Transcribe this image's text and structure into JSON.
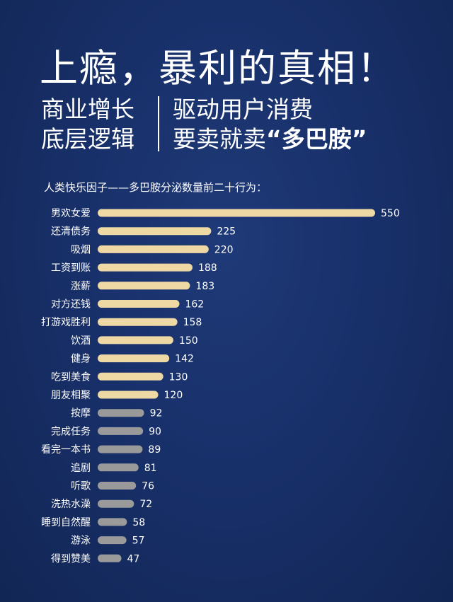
{
  "headline": "上瘾，暴利的真相！",
  "subtitle": {
    "left_line1": "商业增长",
    "left_line2": "底层逻辑",
    "right_line1": "驱动用户消费",
    "right_line2_prefix": "要卖就卖",
    "right_line2_quote": "“多巴胺”"
  },
  "colors": {
    "background": "#18306a",
    "bar_gold": "#eed8a4",
    "bar_grey": "#9a9a9a",
    "text": "#ffffff"
  },
  "chart_data": {
    "type": "bar",
    "orientation": "horizontal",
    "title": "人类快乐因子——多巴胺分泌数量前二十行为：",
    "categories": [
      "男欢女爱",
      "还清债务",
      "吸烟",
      "工资到账",
      "涨薪",
      "对方还钱",
      "打游戏胜利",
      "饮酒",
      "健身",
      "吃到美食",
      "朋友相聚",
      "按摩",
      "完成任务",
      "看完一本书",
      "追剧",
      "听歌",
      "洗热水澡",
      "睡到自然醒",
      "游泳",
      "得到赞美"
    ],
    "values": [
      550,
      225,
      220,
      188,
      183,
      162,
      158,
      150,
      142,
      130,
      120,
      92,
      90,
      89,
      81,
      76,
      72,
      58,
      57,
      47
    ],
    "highlight_count": 11,
    "xlim": [
      0,
      550
    ],
    "grid": false,
    "legend": "none"
  }
}
